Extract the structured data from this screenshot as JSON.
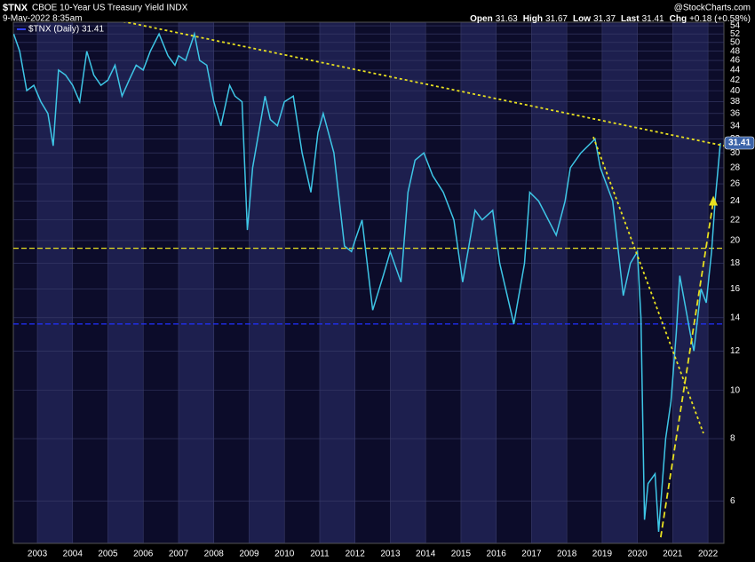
{
  "chart_data": {
    "type": "line",
    "title": "$TNX",
    "subtitle": "CBOE 10-Year US Treasury Yield INDX",
    "date": "9-May-2022 8:35am",
    "source": "@StockCharts.com",
    "quote": [
      {
        "label": "Open",
        "value": "31.63"
      },
      {
        "label": "High",
        "value": "31.67"
      },
      {
        "label": "Low",
        "value": "31.37"
      },
      {
        "label": "Last",
        "value": "31.41"
      },
      {
        "label": "Chg",
        "value": "+0.18 (+0.58%)"
      }
    ],
    "last_label": "31.41",
    "log_scale": true,
    "grid": true,
    "xlim": [
      2002.32,
      2022.45
    ],
    "xticks": [
      2003,
      2004,
      2005,
      2006,
      2007,
      2008,
      2009,
      2010,
      2011,
      2012,
      2013,
      2014,
      2015,
      2016,
      2017,
      2018,
      2019,
      2020,
      2021,
      2022
    ],
    "ylim": [
      4.93,
      54.9
    ],
    "yticks": [
      6,
      8,
      10,
      12,
      14,
      16,
      18,
      20,
      22,
      24,
      26,
      28,
      30,
      32,
      34,
      36,
      38,
      40,
      42,
      44,
      46,
      48,
      50,
      52,
      54
    ],
    "series": [
      {
        "name": "$TNX (Daily) 31.41",
        "color": "#3ec6e6",
        "x": [
          2002.33,
          2002.5,
          2002.7,
          2002.9,
          2003.1,
          2003.3,
          2003.45,
          2003.6,
          2003.8,
          2004.0,
          2004.2,
          2004.4,
          2004.6,
          2004.8,
          2005.0,
          2005.2,
          2005.4,
          2005.6,
          2005.8,
          2006.0,
          2006.2,
          2006.45,
          2006.7,
          2006.9,
          2007.0,
          2007.2,
          2007.45,
          2007.6,
          2007.8,
          2008.0,
          2008.2,
          2008.45,
          2008.6,
          2008.8,
          2008.95,
          2009.1,
          2009.45,
          2009.6,
          2009.8,
          2010.0,
          2010.25,
          2010.5,
          2010.75,
          2010.95,
          2011.1,
          2011.4,
          2011.7,
          2011.9,
          2012.0,
          2012.2,
          2012.5,
          2012.8,
          2013.0,
          2013.3,
          2013.5,
          2013.7,
          2013.95,
          2014.2,
          2014.5,
          2014.8,
          2015.05,
          2015.4,
          2015.6,
          2015.9,
          2016.1,
          2016.5,
          2016.8,
          2016.95,
          2017.2,
          2017.7,
          2017.95,
          2018.1,
          2018.4,
          2018.8,
          2018.95,
          2019.3,
          2019.6,
          2019.8,
          2020.0,
          2020.1,
          2020.2,
          2020.3,
          2020.5,
          2020.6,
          2020.8,
          2020.95,
          2021.1,
          2021.2,
          2021.5,
          2021.6,
          2021.8,
          2021.95,
          2022.1,
          2022.2,
          2022.35
        ],
        "values": [
          52,
          48,
          40,
          41,
          38,
          36,
          31,
          44,
          43,
          41,
          38,
          48,
          43,
          41,
          42,
          45,
          39,
          42,
          45,
          44,
          48,
          52,
          47,
          45,
          47,
          46,
          52,
          46,
          45,
          38,
          34,
          41,
          39,
          38,
          21,
          28,
          39,
          35,
          34,
          38,
          39,
          30,
          25,
          33,
          36,
          30,
          19.5,
          19,
          20,
          22,
          14.5,
          17,
          19,
          16.5,
          25,
          29,
          30,
          27,
          25,
          22,
          16.5,
          23,
          22,
          23,
          18,
          13.6,
          18,
          25,
          24,
          20.5,
          24,
          28,
          30,
          32,
          28,
          24,
          15.5,
          18,
          19,
          14,
          5.5,
          6.5,
          6.8,
          5.2,
          8,
          9.5,
          13,
          17,
          13,
          12,
          16,
          15,
          19,
          24,
          31.41
        ]
      }
    ],
    "hlines": [
      {
        "value": 19.3,
        "color": "#e8e020"
      },
      {
        "value": 13.6,
        "color": "#2030ff"
      }
    ],
    "trendlines": [
      {
        "x": [
          2002.32,
          2022.45
        ],
        "values": [
          61.2,
          31.0
        ],
        "color": "#e8e020",
        "dash": "dotted"
      },
      {
        "x": [
          2018.75,
          2021.87
        ],
        "values": [
          32.3,
          8.2
        ],
        "color": "#e8e020",
        "dash": "dotted"
      },
      {
        "x": [
          2020.66,
          2022.15
        ],
        "values": [
          5.07,
          24.0
        ],
        "color": "#e8e020",
        "dash": "dashed"
      }
    ]
  }
}
